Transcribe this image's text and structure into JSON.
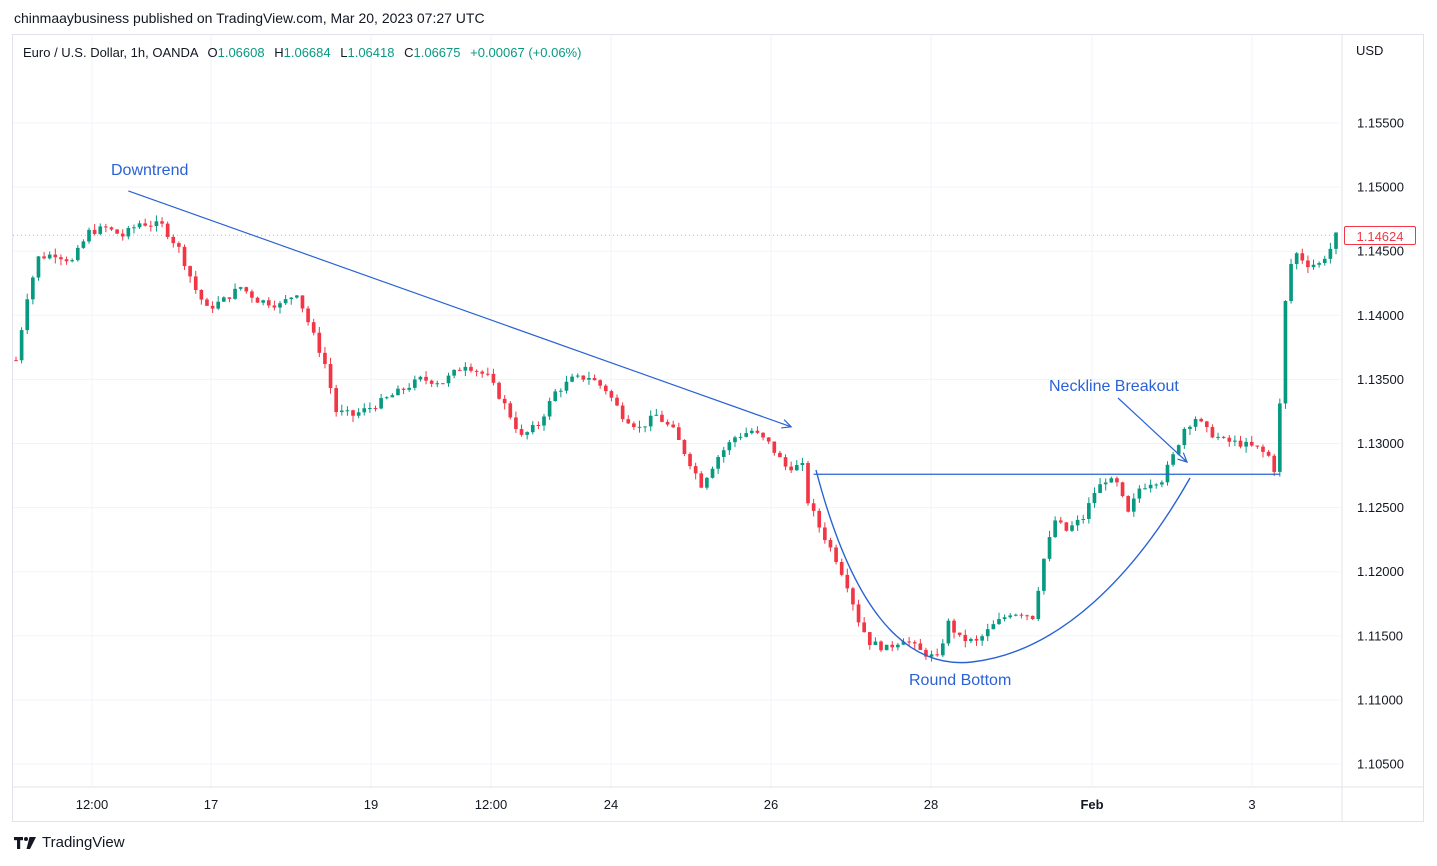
{
  "header": {
    "published_by": "chinmaaybusiness published on TradingView.com, Mar 20, 2023 07:27 UTC"
  },
  "legend": {
    "symbol": "Euro / U.S. Dollar, 1h, OANDA",
    "open_label": "O",
    "open": "1.06608",
    "high_label": "H",
    "high": "1.06684",
    "low_label": "L",
    "low": "1.06418",
    "close_label": "C",
    "close": "1.06675",
    "change": "+0.00067 (+0.06%)"
  },
  "currency": "USD",
  "last_price": "1.14624",
  "footer": {
    "brand": "TradingView"
  },
  "colors": {
    "up": "#089981",
    "down": "#f23645",
    "annotation": "#2a62d6",
    "grid": "#f0f3fa",
    "border": "#e0e3eb"
  },
  "chart_data": {
    "type": "candlestick",
    "title": "Euro / U.S. Dollar, 1h, OANDA",
    "ylabel": "USD",
    "ylim": [
      1.1025,
      1.1595
    ],
    "y_ticks": [
      "1.15500",
      "1.15000",
      "1.14500",
      "1.14000",
      "1.13500",
      "1.13000",
      "1.12500",
      "1.12000",
      "1.11500",
      "1.11000",
      "1.10500"
    ],
    "x_ticks": [
      {
        "label": "12:00",
        "bold": false
      },
      {
        "label": "17",
        "bold": false
      },
      {
        "label": "19",
        "bold": false
      },
      {
        "label": "12:00",
        "bold": false
      },
      {
        "label": "24",
        "bold": false
      },
      {
        "label": "26",
        "bold": false
      },
      {
        "label": "28",
        "bold": false
      },
      {
        "label": "Feb",
        "bold": true
      },
      {
        "label": "3",
        "bold": false
      }
    ],
    "price_path": [
      [
        0,
        1.1365
      ],
      [
        2,
        1.1415
      ],
      [
        4,
        1.1445
      ],
      [
        7,
        1.1448
      ],
      [
        10,
        1.1442
      ],
      [
        13,
        1.1465
      ],
      [
        16,
        1.1468
      ],
      [
        19,
        1.1462
      ],
      [
        22,
        1.1472
      ],
      [
        26,
        1.147
      ],
      [
        29,
        1.1452
      ],
      [
        32,
        1.142
      ],
      [
        34,
        1.1405
      ],
      [
        37,
        1.1412
      ],
      [
        40,
        1.1422
      ],
      [
        43,
        1.1412
      ],
      [
        47,
        1.1408
      ],
      [
        50,
        1.1418
      ],
      [
        52,
        1.1395
      ],
      [
        55,
        1.1362
      ],
      [
        57,
        1.1325
      ],
      [
        60,
        1.1322
      ],
      [
        64,
        1.133
      ],
      [
        68,
        1.134
      ],
      [
        72,
        1.135
      ],
      [
        76,
        1.1348
      ],
      [
        80,
        1.1362
      ],
      [
        84,
        1.1352
      ],
      [
        87,
        1.133
      ],
      [
        90,
        1.1305
      ],
      [
        93,
        1.1315
      ],
      [
        96,
        1.134
      ],
      [
        99,
        1.135
      ],
      [
        102,
        1.1352
      ],
      [
        105,
        1.1342
      ],
      [
        108,
        1.1322
      ],
      [
        111,
        1.1312
      ],
      [
        114,
        1.1322
      ],
      [
        117,
        1.131
      ],
      [
        120,
        1.1285
      ],
      [
        122,
        1.1268
      ],
      [
        125,
        1.129
      ],
      [
        128,
        1.1305
      ],
      [
        131,
        1.131
      ],
      [
        134,
        1.13
      ],
      [
        137,
        1.1282
      ],
      [
        140,
        1.1282
      ],
      [
        141,
        1.1255
      ],
      [
        143,
        1.1235
      ],
      [
        146,
        1.121
      ],
      [
        148,
        1.119
      ],
      [
        150,
        1.1162
      ],
      [
        152,
        1.1145
      ],
      [
        155,
        1.114
      ],
      [
        158,
        1.1148
      ],
      [
        161,
        1.1138
      ],
      [
        164,
        1.1132
      ],
      [
        166,
        1.116
      ],
      [
        168,
        1.1148
      ],
      [
        171,
        1.1145
      ],
      [
        174,
        1.1158
      ],
      [
        177,
        1.1168
      ],
      [
        179,
        1.1168
      ],
      [
        181,
        1.1165
      ],
      [
        183,
        1.121
      ],
      [
        185,
        1.124
      ],
      [
        187,
        1.1232
      ],
      [
        190,
        1.1242
      ],
      [
        192,
        1.1262
      ],
      [
        194,
        1.1272
      ],
      [
        196,
        1.1268
      ],
      [
        198,
        1.1245
      ],
      [
        200,
        1.1265
      ],
      [
        202,
        1.127
      ],
      [
        204,
        1.1272
      ],
      [
        206,
        1.129
      ],
      [
        208,
        1.1312
      ],
      [
        210,
        1.132
      ],
      [
        212,
        1.131
      ],
      [
        215,
        1.1302
      ],
      [
        218,
        1.13
      ],
      [
        221,
        1.1296
      ],
      [
        223,
        1.129
      ],
      [
        224,
        1.128
      ],
      [
        225,
        1.133
      ],
      [
        226,
        1.141
      ],
      [
        227,
        1.144
      ],
      [
        228,
        1.1448
      ],
      [
        230,
        1.144
      ],
      [
        232,
        1.144
      ],
      [
        234,
        1.1452
      ],
      [
        235,
        1.1462
      ]
    ],
    "candle_count": 236,
    "annotations": [
      {
        "text": "Downtrend",
        "type": "arrow-line",
        "from": [
          20,
          1.1497
        ],
        "to": [
          138,
          1.1313
        ]
      },
      {
        "text": "Neckline Breakout",
        "type": "arrow-line"
      },
      {
        "text": "Round Bottom",
        "type": "curve"
      },
      {
        "text": "",
        "type": "neckline",
        "from": [
          142,
          1.1276
        ],
        "to": [
          225,
          1.1276
        ]
      }
    ]
  }
}
